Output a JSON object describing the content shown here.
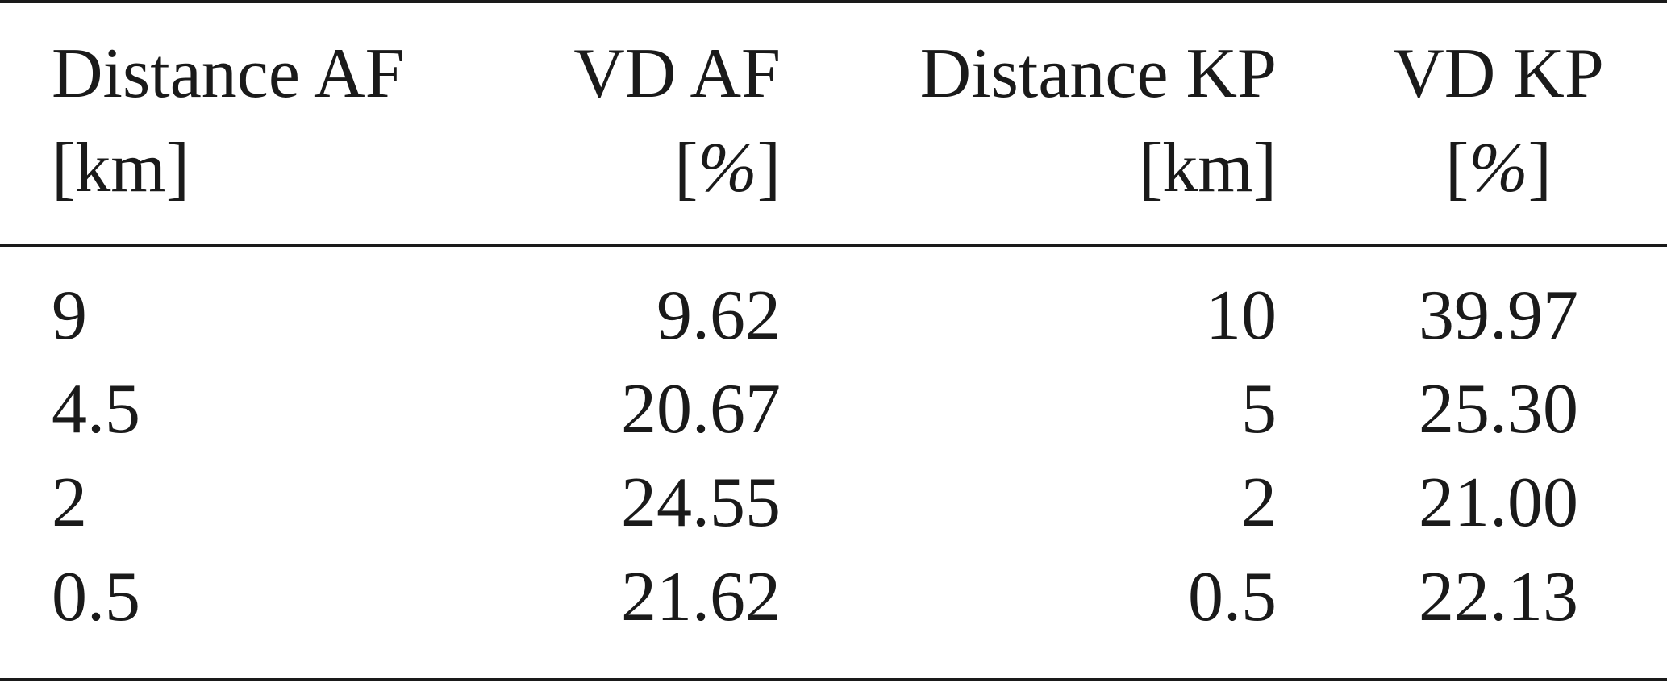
{
  "table": {
    "headers": [
      {
        "line1": "Distance AF",
        "line2": "[km]"
      },
      {
        "line1": "VD AF",
        "line2_open": "[",
        "line2_unit": "%",
        "line2_close": "]"
      },
      {
        "line1": "Distance KP",
        "line2": "[km]"
      },
      {
        "line1": "VD KP",
        "line2_open": "[",
        "line2_unit": "%",
        "line2_close": "]"
      }
    ],
    "rows": [
      [
        "9",
        "9.62",
        "10",
        "39.97"
      ],
      [
        "4.5",
        "20.67",
        "5",
        "25.30"
      ],
      [
        "2",
        "24.55",
        "2",
        "21.00"
      ],
      [
        "0.5",
        "21.62",
        "0.5",
        "22.13"
      ]
    ]
  }
}
